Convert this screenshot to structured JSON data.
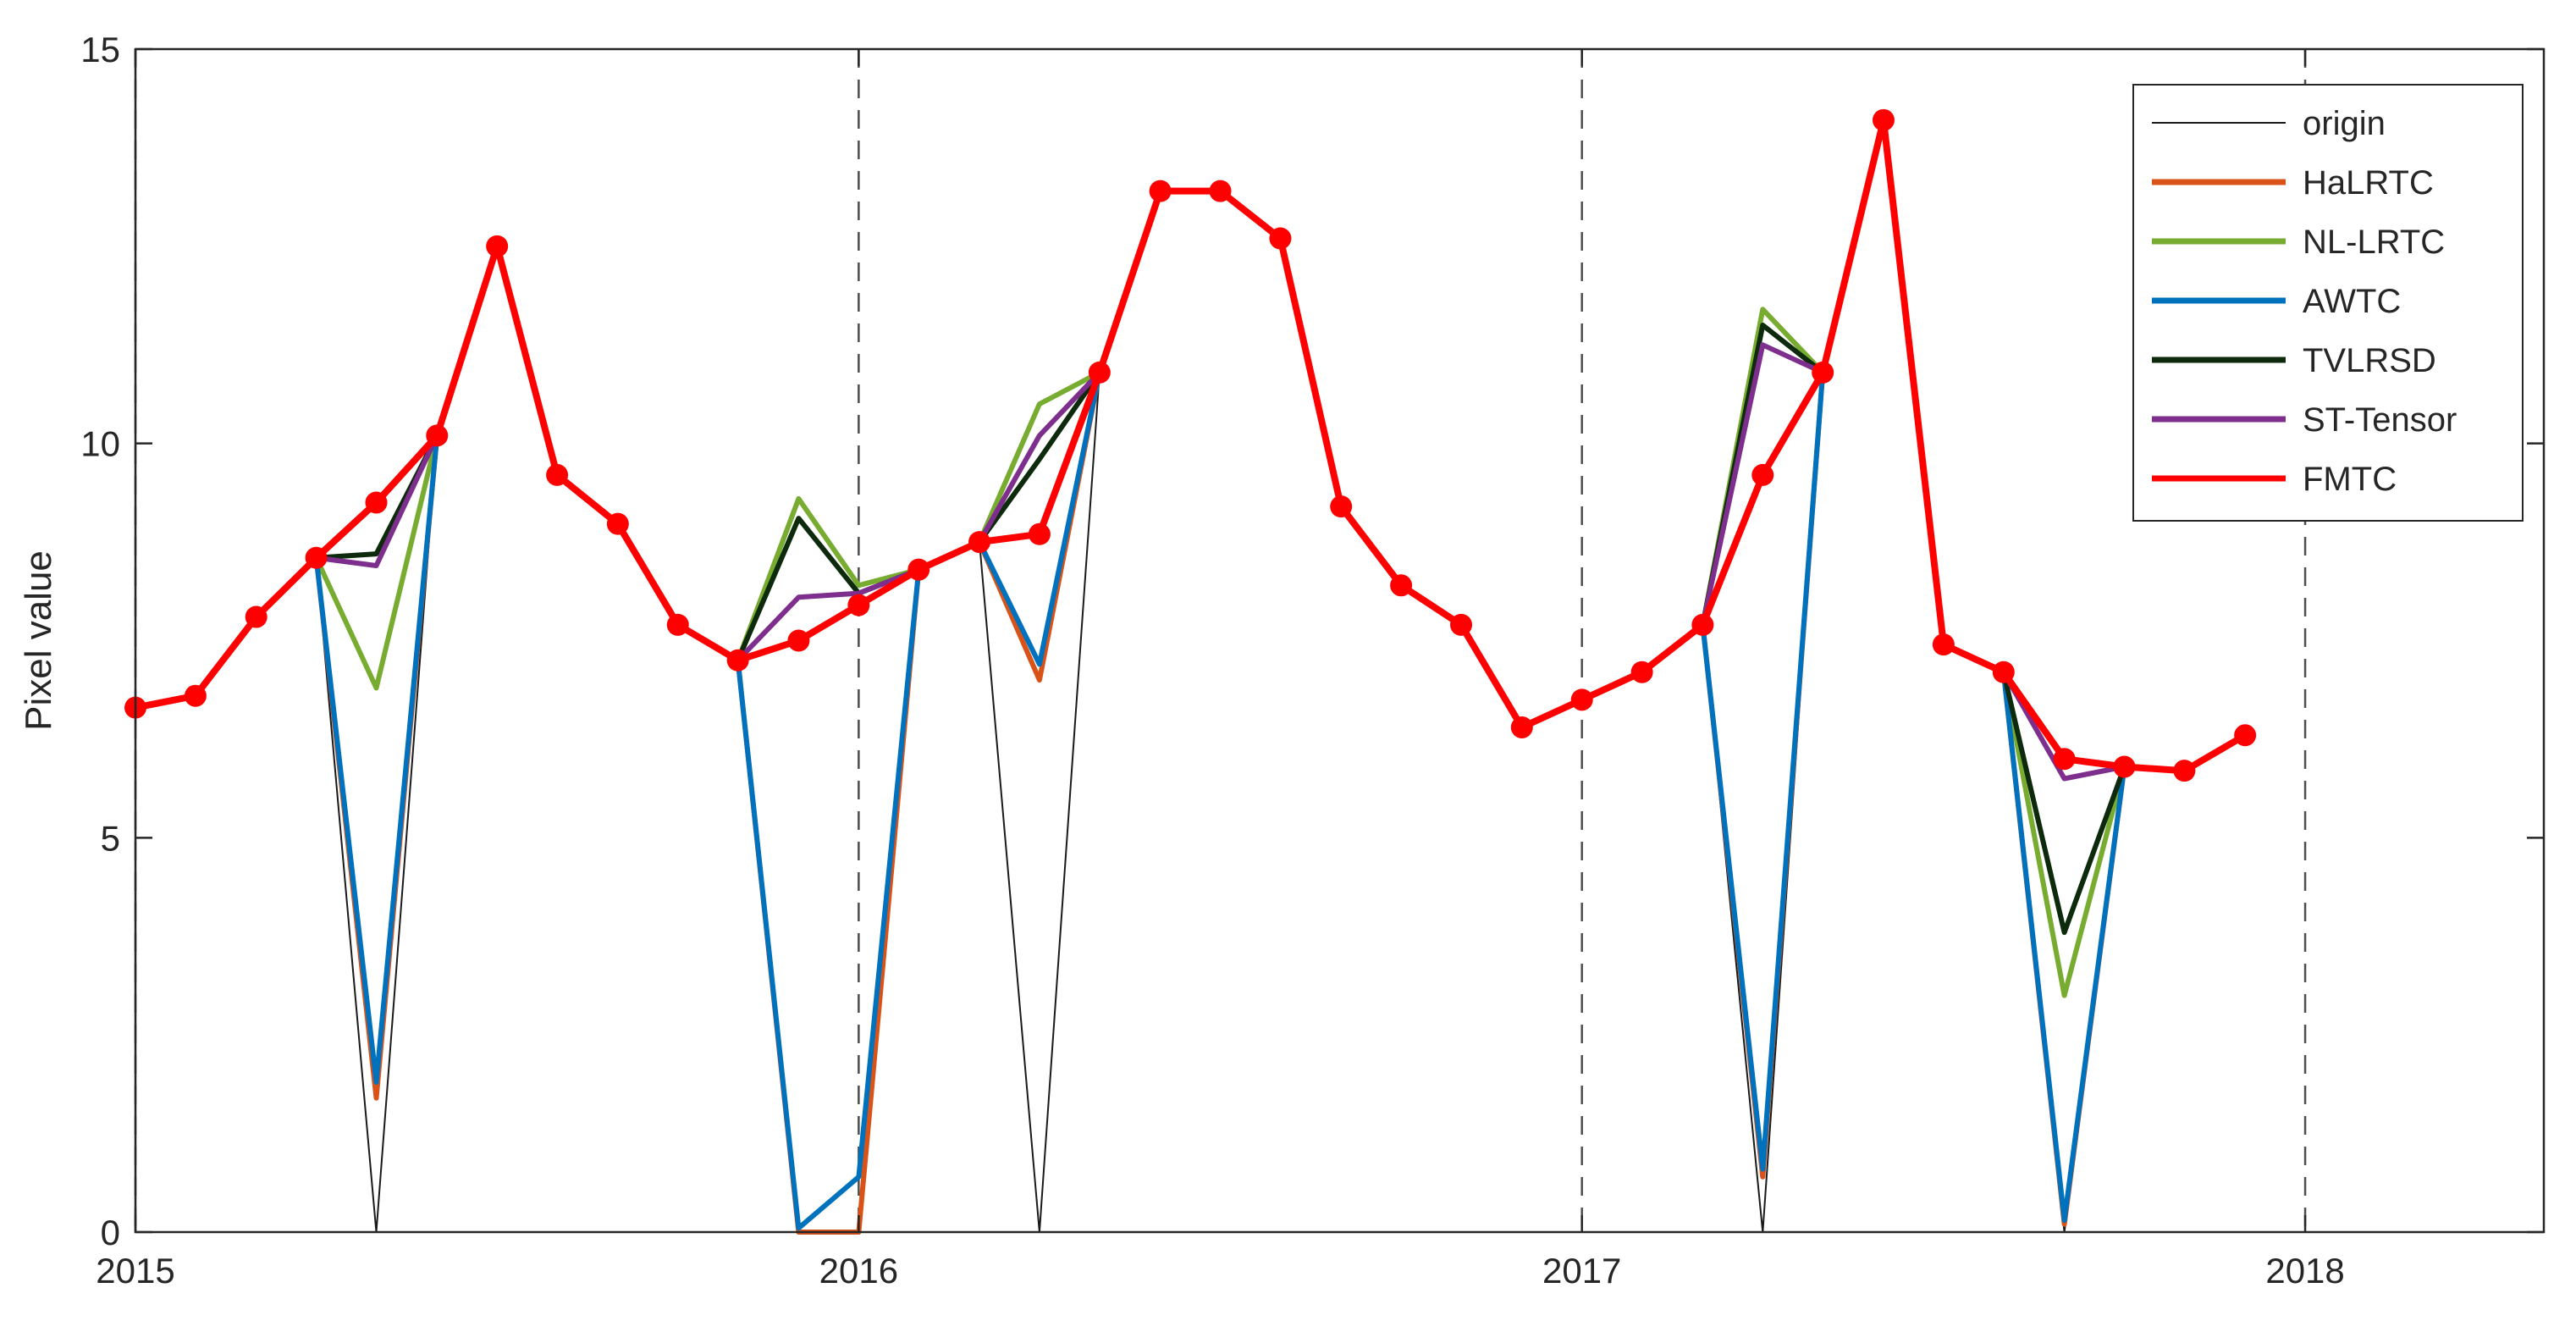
{
  "chart_data": {
    "type": "line",
    "ylabel": "Pixel value",
    "xlabel": "",
    "xlim": [
      2015,
      2018.33
    ],
    "ylim": [
      0,
      15
    ],
    "yticks": [
      0,
      5,
      10,
      15
    ],
    "xticks": [
      2015,
      2016,
      2017,
      2018
    ],
    "year_lines": [
      2015,
      2016,
      2017,
      2018
    ],
    "grid": false,
    "legend_position": "top-right",
    "x": [
      2015.0,
      2015.083,
      2015.167,
      2015.25,
      2015.333,
      2015.417,
      2015.5,
      2015.583,
      2015.667,
      2015.75,
      2015.833,
      2015.917,
      2016.0,
      2016.083,
      2016.167,
      2016.25,
      2016.333,
      2016.417,
      2016.5,
      2016.583,
      2016.667,
      2016.75,
      2016.833,
      2016.917,
      2017.0,
      2017.083,
      2017.167,
      2017.25,
      2017.333,
      2017.417,
      2017.5,
      2017.583,
      2017.667,
      2017.75,
      2017.833,
      2017.917,
      2018.0
    ],
    "series": [
      {
        "name": "origin",
        "color": "#1a1a1a",
        "width": 2,
        "markers": false,
        "values": [
          6.65,
          6.8,
          7.8,
          8.55,
          0.0,
          10.1,
          12.5,
          9.6,
          8.98,
          7.7,
          7.25,
          0.0,
          0.0,
          8.4,
          8.75,
          0.0,
          10.9,
          13.2,
          13.2,
          12.6,
          9.2,
          8.2,
          7.7,
          6.4,
          6.75,
          7.1,
          7.7,
          0.0,
          10.9,
          14.1,
          7.45,
          7.1,
          0.0,
          5.9,
          5.85,
          6.3,
          null
        ]
      },
      {
        "name": "HaLRTC",
        "color": "#d95319",
        "width": 6,
        "markers": false,
        "values": [
          6.65,
          6.8,
          7.8,
          8.55,
          1.7,
          10.1,
          12.5,
          9.6,
          8.98,
          7.7,
          7.25,
          0.0,
          0.0,
          8.4,
          8.75,
          7.0,
          10.9,
          13.2,
          13.2,
          12.6,
          9.2,
          8.2,
          7.7,
          6.4,
          6.75,
          7.1,
          7.7,
          0.7,
          10.9,
          14.1,
          7.45,
          7.1,
          0.1,
          5.9,
          5.85,
          6.3,
          null
        ]
      },
      {
        "name": "NL-LRTC",
        "color": "#77ac30",
        "width": 6,
        "markers": false,
        "values": [
          6.65,
          6.8,
          7.8,
          8.55,
          6.9,
          10.1,
          12.5,
          9.6,
          8.98,
          7.7,
          7.25,
          9.3,
          8.2,
          8.4,
          8.75,
          10.5,
          10.9,
          13.2,
          13.2,
          12.6,
          9.2,
          8.2,
          7.7,
          6.4,
          6.75,
          7.1,
          7.7,
          11.7,
          10.9,
          14.1,
          7.45,
          7.1,
          3.0,
          5.9,
          5.85,
          6.3,
          null
        ]
      },
      {
        "name": "AWTC",
        "color": "#0072bd",
        "width": 6,
        "markers": false,
        "values": [
          6.65,
          6.8,
          7.8,
          8.55,
          1.9,
          10.1,
          12.5,
          9.6,
          8.98,
          7.7,
          7.25,
          0.05,
          0.7,
          8.4,
          8.75,
          7.2,
          10.9,
          13.2,
          13.2,
          12.6,
          9.2,
          8.2,
          7.7,
          6.4,
          6.75,
          7.1,
          7.7,
          0.8,
          10.9,
          14.1,
          7.45,
          7.1,
          0.15,
          5.9,
          5.85,
          6.3,
          null
        ]
      },
      {
        "name": "TVLRSD",
        "color": "#0d2a0d",
        "width": 6,
        "markers": false,
        "values": [
          6.65,
          6.8,
          7.8,
          8.55,
          8.6,
          10.1,
          12.5,
          9.6,
          8.98,
          7.7,
          7.25,
          9.05,
          8.1,
          8.4,
          8.75,
          9.8,
          10.9,
          13.2,
          13.2,
          12.6,
          9.2,
          8.2,
          7.7,
          6.4,
          6.75,
          7.1,
          7.7,
          11.5,
          10.9,
          14.1,
          7.45,
          7.1,
          3.8,
          5.9,
          5.85,
          6.3,
          null
        ]
      },
      {
        "name": "ST-Tensor",
        "color": "#7e2f8e",
        "width": 6,
        "markers": false,
        "values": [
          6.65,
          6.8,
          7.8,
          8.55,
          8.45,
          10.1,
          12.5,
          9.6,
          8.98,
          7.7,
          7.25,
          8.05,
          8.1,
          8.4,
          8.75,
          10.1,
          10.9,
          13.2,
          13.2,
          12.6,
          9.2,
          8.2,
          7.7,
          6.4,
          6.75,
          7.1,
          7.7,
          11.25,
          10.9,
          14.1,
          7.45,
          7.1,
          5.75,
          5.9,
          5.85,
          6.3,
          null
        ]
      },
      {
        "name": "FMTC",
        "color": "#ff0000",
        "width": 8,
        "markers": true,
        "values": [
          6.65,
          6.8,
          7.8,
          8.55,
          9.25,
          10.1,
          12.5,
          9.6,
          8.98,
          7.7,
          7.25,
          7.5,
          7.95,
          8.4,
          8.75,
          8.85,
          10.9,
          13.2,
          13.2,
          12.6,
          9.2,
          8.2,
          7.7,
          6.4,
          6.75,
          7.1,
          7.7,
          9.6,
          10.9,
          14.1,
          7.45,
          7.1,
          6.0,
          5.9,
          5.85,
          6.3,
          null
        ]
      }
    ]
  }
}
